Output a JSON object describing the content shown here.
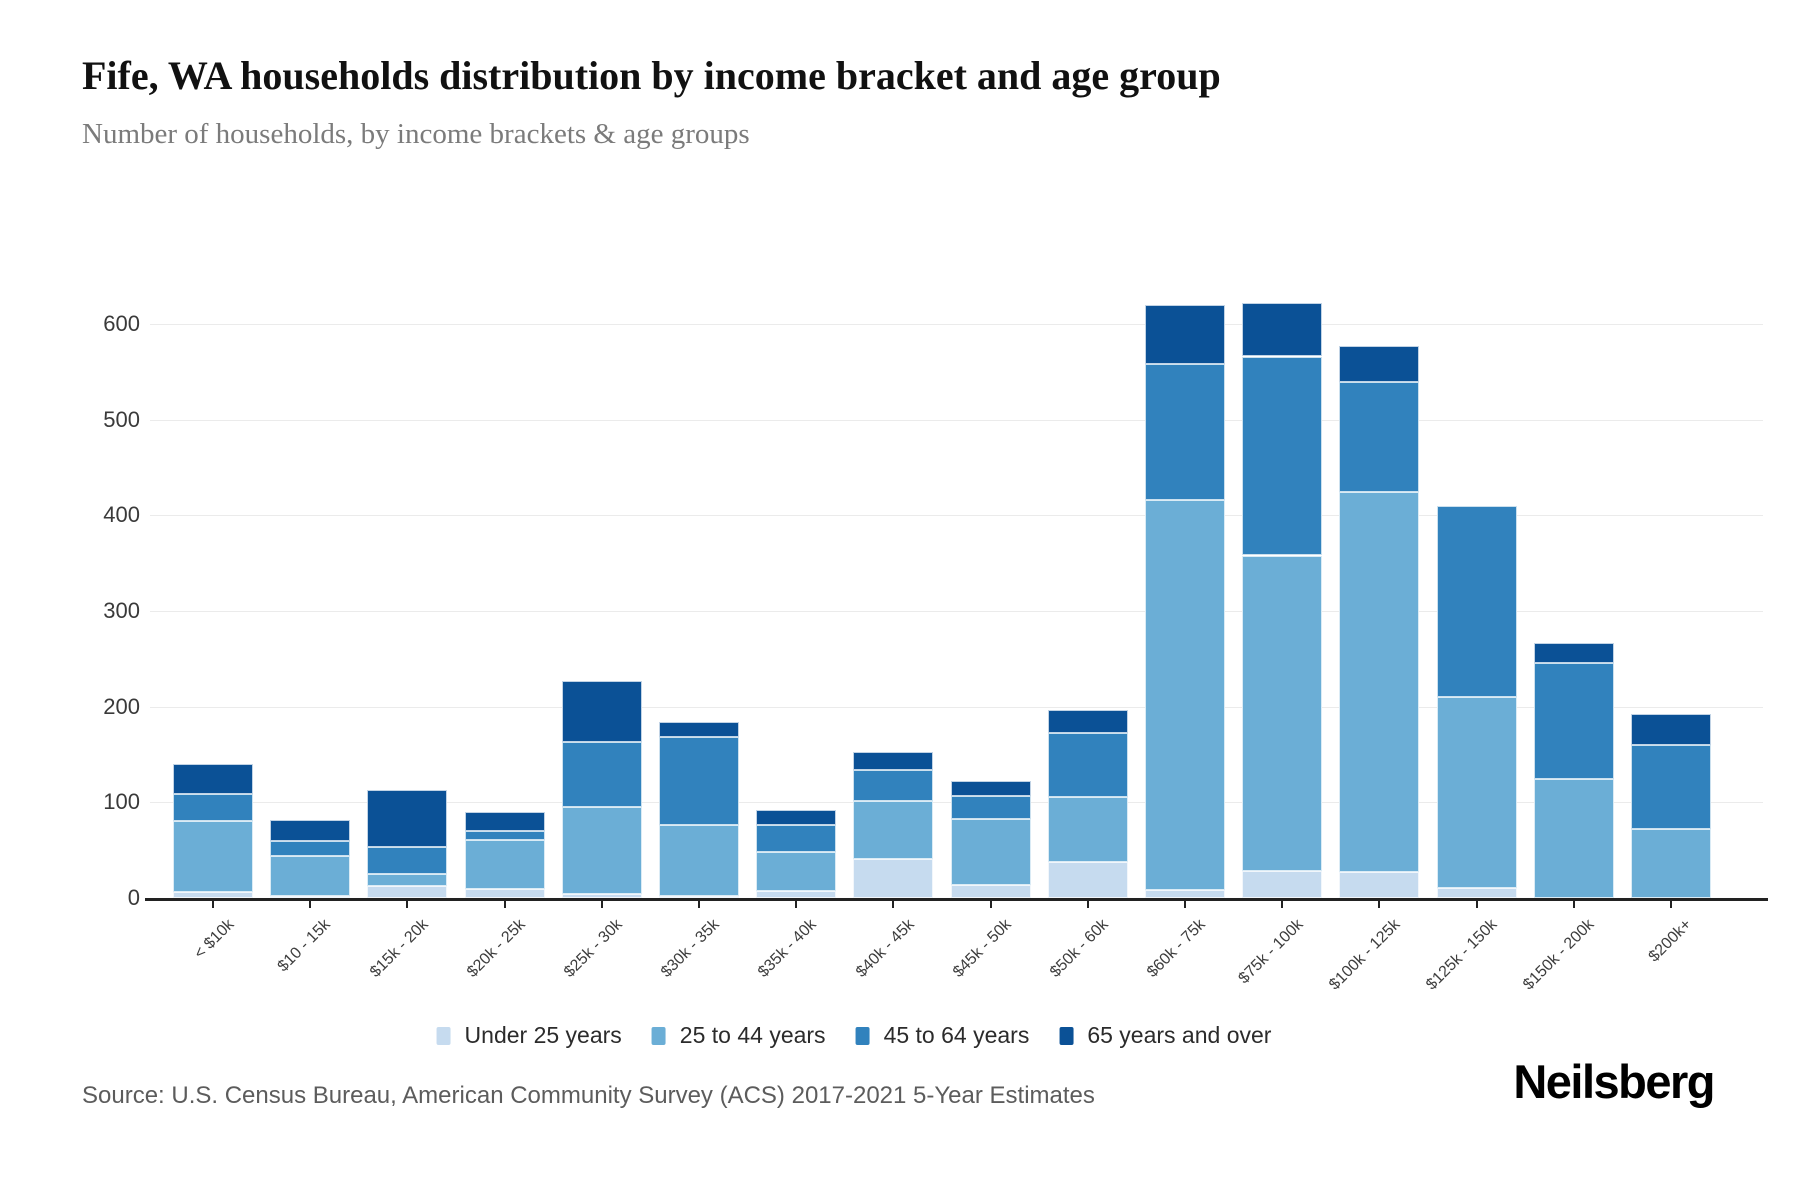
{
  "header": {
    "title": "Fife, WA households distribution by income bracket and age group",
    "subtitle": "Number of households, by income brackets & age groups"
  },
  "footer": {
    "source": "Source: U.S. Census Bureau, American Community Survey (ACS) 2017-2021 5-Year Estimates",
    "brand": "Neilsberg"
  },
  "chart_data": {
    "type": "bar",
    "stacked": true,
    "title": "Fife, WA households distribution by income bracket and age group",
    "subtitle": "Number of households, by income brackets & age groups",
    "xlabel": "",
    "ylabel": "",
    "ylim": [
      0,
      650
    ],
    "yticks": [
      0,
      100,
      200,
      300,
      400,
      500,
      600
    ],
    "grid": "horizontal",
    "legend_position": "bottom",
    "categories": [
      "< $10k",
      "$10 - 15k",
      "$15k - 20k",
      "$20k - 25k",
      "$25k - 30k",
      "$30k - 35k",
      "$35k - 40k",
      "$40k - 45k",
      "$45k - 50k",
      "$50k - 60k",
      "$60k - 75k",
      "$75k - 100k",
      "$100k - 125k",
      "$125k - 150k",
      "$150k - 200k",
      "$200k+"
    ],
    "series": [
      {
        "name": "Under 25 years",
        "color": "#c6dbef",
        "values": [
          6,
          2,
          13,
          9,
          4,
          2,
          7,
          41,
          14,
          38,
          8,
          28,
          27,
          10,
          0,
          0
        ]
      },
      {
        "name": "25 to 44 years",
        "color": "#6baed6",
        "values": [
          74,
          42,
          12,
          52,
          91,
          74,
          41,
          60,
          69,
          68,
          408,
          330,
          397,
          200,
          124,
          72
        ]
      },
      {
        "name": "45 to 64 years",
        "color": "#3182bd",
        "values": [
          29,
          16,
          28,
          9,
          68,
          92,
          28,
          33,
          24,
          66,
          142,
          208,
          115,
          200,
          122,
          88
        ]
      },
      {
        "name": "65 years and over",
        "color": "#0b5196",
        "values": [
          31,
          22,
          60,
          20,
          64,
          16,
          16,
          19,
          15,
          24,
          62,
          56,
          38,
          0,
          21,
          32
        ]
      }
    ],
    "totals": [
      140,
      82,
      113,
      90,
      227,
      184,
      92,
      153,
      122,
      196,
      620,
      622,
      577,
      410,
      267,
      192
    ]
  }
}
